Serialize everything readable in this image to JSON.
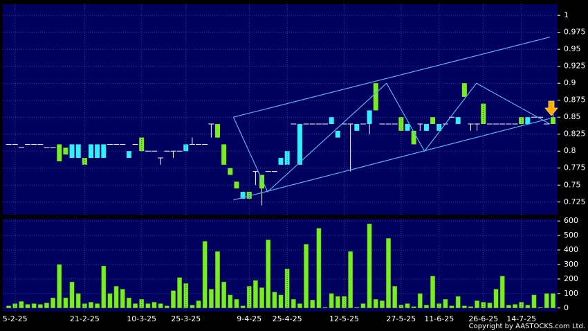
{
  "chart_data": [
    {
      "type": "candlestick",
      "open": [
        0.81,
        0.81,
        0.805,
        0.81,
        0.81,
        0.81,
        0.805,
        0.805,
        0.81,
        0.805,
        0.79,
        0.79,
        0.79,
        0.79,
        0.79,
        0.79,
        0.81,
        0.81,
        0.81,
        0.79,
        0.81,
        0.82,
        0.8,
        0.8,
        0.79,
        0.8,
        0.8,
        0.8,
        0.8,
        0.81,
        0.81,
        0.81,
        0.84,
        0.84,
        0.81,
        0.775,
        0.755,
        0.73,
        0.74,
        0.77,
        0.765,
        0.77,
        0.77,
        0.78,
        0.78,
        0.84,
        0.78,
        0.84,
        0.84,
        0.84,
        0.84,
        0.84,
        0.82,
        0.84,
        0.84,
        0.83,
        0.84,
        0.84,
        0.9,
        0.84,
        0.84,
        0.84,
        0.85,
        0.83,
        0.83,
        0.84,
        0.83,
        0.85,
        0.83,
        0.84,
        0.85,
        0.84,
        0.9,
        0.84,
        0.84,
        0.87,
        0.84,
        0.84,
        0.84,
        0.84,
        0.84,
        0.85,
        0.84,
        0.85,
        0.85,
        0.84,
        0.85
      ],
      "high": [
        0.81,
        0.81,
        0.805,
        0.81,
        0.81,
        0.81,
        0.805,
        0.805,
        0.81,
        0.805,
        0.81,
        0.81,
        0.79,
        0.81,
        0.81,
        0.81,
        0.81,
        0.81,
        0.81,
        0.8,
        0.81,
        0.82,
        0.8,
        0.8,
        0.79,
        0.8,
        0.8,
        0.8,
        0.81,
        0.82,
        0.81,
        0.81,
        0.84,
        0.84,
        0.81,
        0.775,
        0.755,
        0.74,
        0.74,
        0.77,
        0.765,
        0.77,
        0.77,
        0.79,
        0.8,
        0.84,
        0.84,
        0.84,
        0.84,
        0.84,
        0.84,
        0.85,
        0.83,
        0.84,
        0.84,
        0.84,
        0.84,
        0.86,
        0.9,
        0.84,
        0.84,
        0.84,
        0.85,
        0.84,
        0.83,
        0.84,
        0.84,
        0.85,
        0.84,
        0.84,
        0.85,
        0.85,
        0.9,
        0.84,
        0.84,
        0.87,
        0.84,
        0.84,
        0.84,
        0.84,
        0.84,
        0.85,
        0.85,
        0.85,
        0.85,
        0.84,
        0.86
      ],
      "low": [
        0.81,
        0.81,
        0.805,
        0.81,
        0.81,
        0.81,
        0.805,
        0.805,
        0.785,
        0.795,
        0.79,
        0.79,
        0.78,
        0.79,
        0.79,
        0.79,
        0.81,
        0.81,
        0.81,
        0.79,
        0.81,
        0.8,
        0.8,
        0.8,
        0.78,
        0.8,
        0.79,
        0.8,
        0.8,
        0.81,
        0.81,
        0.81,
        0.82,
        0.82,
        0.78,
        0.765,
        0.745,
        0.73,
        0.73,
        0.75,
        0.72,
        0.77,
        0.77,
        0.78,
        0.78,
        0.84,
        0.78,
        0.84,
        0.84,
        0.84,
        0.84,
        0.84,
        0.82,
        0.84,
        0.77,
        0.83,
        0.84,
        0.825,
        0.86,
        0.84,
        0.84,
        0.84,
        0.83,
        0.83,
        0.81,
        0.83,
        0.83,
        0.84,
        0.83,
        0.84,
        0.85,
        0.84,
        0.88,
        0.83,
        0.83,
        0.84,
        0.84,
        0.84,
        0.84,
        0.84,
        0.84,
        0.84,
        0.84,
        0.85,
        0.85,
        0.84,
        0.84
      ],
      "close": [
        0.81,
        0.81,
        0.805,
        0.81,
        0.81,
        0.81,
        0.805,
        0.805,
        0.785,
        0.795,
        0.81,
        0.81,
        0.78,
        0.81,
        0.81,
        0.81,
        0.81,
        0.81,
        0.81,
        0.8,
        0.81,
        0.8,
        0.8,
        0.8,
        0.79,
        0.8,
        0.8,
        0.8,
        0.81,
        0.81,
        0.81,
        0.81,
        0.84,
        0.82,
        0.78,
        0.765,
        0.745,
        0.74,
        0.73,
        0.77,
        0.745,
        0.77,
        0.77,
        0.79,
        0.8,
        0.84,
        0.84,
        0.84,
        0.84,
        0.84,
        0.84,
        0.85,
        0.83,
        0.84,
        0.84,
        0.84,
        0.84,
        0.86,
        0.86,
        0.84,
        0.84,
        0.84,
        0.83,
        0.84,
        0.81,
        0.84,
        0.84,
        0.84,
        0.84,
        0.84,
        0.85,
        0.85,
        0.88,
        0.84,
        0.84,
        0.84,
        0.84,
        0.84,
        0.84,
        0.84,
        0.84,
        0.84,
        0.85,
        0.85,
        0.85,
        0.84,
        0.84
      ],
      "up_color": "#33eeff",
      "down_color": "#77ee22",
      "flat_color": "#ffffff",
      "trend_color": "#5ab4f0",
      "trendlines": [
        {
          "x": [
            35.5,
            85.5
          ],
          "y": [
            0.85,
            0.968
          ]
        },
        {
          "x": [
            35.5,
            85.5
          ],
          "y": [
            0.728,
            0.848
          ]
        },
        {
          "x": [
            35.5,
            40.9,
            59.7,
            65.7,
            73.9,
            85.5
          ],
          "y": [
            0.85,
            0.74,
            0.9,
            0.8,
            0.9,
            0.84
          ]
        }
      ],
      "ylim": [
        0.7064,
        1.0165
      ],
      "yticks": [
        0.725,
        0.75,
        0.775,
        0.8,
        0.825,
        0.85,
        0.875,
        0.9,
        0.925,
        0.95,
        0.975,
        1
      ],
      "grid": true
    },
    {
      "type": "bar",
      "categories": [
        null,
        "5-2-25",
        null,
        null,
        null,
        null,
        null,
        null,
        null,
        null,
        null,
        null,
        "21-2-25",
        null,
        null,
        null,
        null,
        null,
        null,
        null,
        null,
        "10-3-25",
        null,
        null,
        null,
        null,
        null,
        null,
        "25-3-25",
        null,
        null,
        null,
        null,
        null,
        null,
        null,
        null,
        null,
        "9-4-25",
        null,
        null,
        null,
        null,
        null,
        "25-4-25",
        null,
        null,
        null,
        null,
        null,
        null,
        null,
        null,
        "12-5-25",
        null,
        null,
        null,
        null,
        null,
        null,
        null,
        null,
        "27-5-25",
        null,
        null,
        null,
        null,
        null,
        "11-6-25",
        null,
        null,
        null,
        null,
        null,
        null,
        "26-6-25",
        null,
        null,
        null,
        null,
        null,
        "14-7-25",
        null,
        null,
        null,
        null,
        null
      ],
      "values": [
        15,
        30,
        45,
        25,
        30,
        25,
        35,
        70,
        300,
        70,
        180,
        100,
        30,
        40,
        30,
        290,
        100,
        150,
        130,
        70,
        30,
        60,
        30,
        40,
        30,
        15,
        120,
        210,
        170,
        20,
        50,
        460,
        130,
        390,
        180,
        90,
        60,
        15,
        150,
        190,
        140,
        470,
        110,
        90,
        270,
        60,
        30,
        440,
        55,
        550,
        5,
        100,
        80,
        80,
        390,
        5,
        30,
        580,
        60,
        50,
        480,
        150,
        20,
        30,
        10,
        100,
        20,
        220,
        30,
        60,
        15,
        80,
        15,
        10,
        50,
        40,
        35,
        130,
        220,
        20,
        25,
        40,
        20,
        90,
        5,
        100,
        100
      ],
      "color": "#77ee22",
      "ylim": [
        -25,
        615
      ],
      "yticks": [
        0,
        100,
        200,
        300,
        400,
        500,
        600
      ],
      "grid": true
    }
  ],
  "copyright": "Copyright by AASTOCKS.com Ltd."
}
